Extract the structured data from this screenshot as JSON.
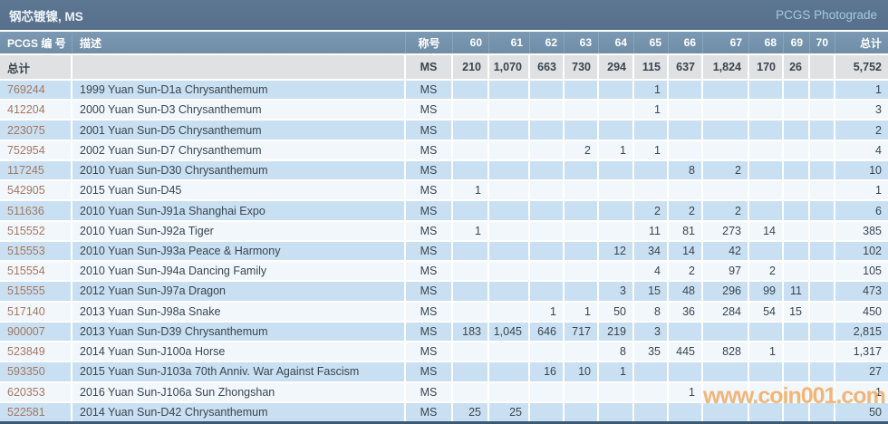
{
  "title": "钢芯镀镍, MS",
  "photograde_label": "PCGS Photograde",
  "watermark_text": "www.coin001.com",
  "colors": {
    "titlebar_bg_top": "#5d7793",
    "titlebar_bg": "#56708b",
    "header_bg": "#7493ad",
    "total_row_bg": "#dfe1e3",
    "row_alt_blue": "#c9e0f2",
    "row_alt_white": "#f2f7fc",
    "link_color": "#a5765f",
    "text_dark": "#3a454e",
    "photograde_color": "#a8c7e0",
    "watermark_color": "#f0a455",
    "bottom_border": "#3d5a74"
  },
  "table": {
    "columns": [
      "PCGS 编 号",
      "描述",
      "称号",
      "60",
      "61",
      "62",
      "63",
      "64",
      "65",
      "66",
      "67",
      "68",
      "69",
      "70",
      "总计"
    ],
    "total_row": {
      "label": "总计",
      "desc": "",
      "designation": "MS",
      "grades": [
        "210",
        "1,070",
        "663",
        "730",
        "294",
        "115",
        "637",
        "1,824",
        "170",
        "26",
        ""
      ],
      "total": "5,752"
    },
    "rows": [
      {
        "pcgs": "769244",
        "desc": "1999 Yuan Sun-D1a Chrysanthemum",
        "designation": "MS",
        "grades": [
          "",
          "",
          "",
          "",
          "",
          "1",
          "",
          "",
          "",
          "",
          ""
        ],
        "total": "1"
      },
      {
        "pcgs": "412204",
        "desc": "2000 Yuan Sun-D3 Chrysanthemum",
        "designation": "MS",
        "grades": [
          "",
          "",
          "",
          "",
          "",
          "1",
          "",
          "",
          "",
          "",
          ""
        ],
        "total": "3"
      },
      {
        "pcgs": "223075",
        "desc": "2001 Yuan Sun-D5 Chrysanthemum",
        "designation": "MS",
        "grades": [
          "",
          "",
          "",
          "",
          "",
          "",
          "",
          "",
          "",
          "",
          ""
        ],
        "total": "2"
      },
      {
        "pcgs": "752954",
        "desc": "2002 Yuan Sun-D7 Chrysanthemum",
        "designation": "MS",
        "grades": [
          "",
          "",
          "",
          "2",
          "1",
          "1",
          "",
          "",
          "",
          "",
          ""
        ],
        "total": "4"
      },
      {
        "pcgs": "117245",
        "desc": "2010 Yuan Sun-D30 Chrysanthemum",
        "designation": "MS",
        "grades": [
          "",
          "",
          "",
          "",
          "",
          "",
          "8",
          "2",
          "",
          "",
          ""
        ],
        "total": "10"
      },
      {
        "pcgs": "542905",
        "desc": "2015 Yuan Sun-D45",
        "designation": "MS",
        "grades": [
          "1",
          "",
          "",
          "",
          "",
          "",
          "",
          "",
          "",
          "",
          ""
        ],
        "total": "1"
      },
      {
        "pcgs": "511636",
        "desc": "2010 Yuan Sun-J91a Shanghai Expo",
        "designation": "MS",
        "grades": [
          "",
          "",
          "",
          "",
          "",
          "2",
          "2",
          "2",
          "",
          "",
          ""
        ],
        "total": "6"
      },
      {
        "pcgs": "515552",
        "desc": "2010 Yuan Sun-J92a Tiger",
        "designation": "MS",
        "grades": [
          "1",
          "",
          "",
          "",
          "",
          "11",
          "81",
          "273",
          "14",
          "",
          ""
        ],
        "total": "385"
      },
      {
        "pcgs": "515553",
        "desc": "2010 Yuan Sun-J93a Peace & Harmony",
        "designation": "MS",
        "grades": [
          "",
          "",
          "",
          "",
          "12",
          "34",
          "14",
          "42",
          "",
          "",
          ""
        ],
        "total": "102"
      },
      {
        "pcgs": "515554",
        "desc": "2010 Yuan Sun-J94a Dancing Family",
        "designation": "MS",
        "grades": [
          "",
          "",
          "",
          "",
          "",
          "4",
          "2",
          "97",
          "2",
          "",
          ""
        ],
        "total": "105"
      },
      {
        "pcgs": "515555",
        "desc": "2012 Yuan Sun-J97a Dragon",
        "designation": "MS",
        "grades": [
          "",
          "",
          "",
          "",
          "3",
          "15",
          "48",
          "296",
          "99",
          "11",
          ""
        ],
        "total": "473"
      },
      {
        "pcgs": "517140",
        "desc": "2013 Yuan Sun-J98a Snake",
        "designation": "MS",
        "grades": [
          "",
          "",
          "1",
          "1",
          "50",
          "8",
          "36",
          "284",
          "54",
          "15",
          ""
        ],
        "total": "450"
      },
      {
        "pcgs": "900007",
        "desc": "2013 Yuan Sun-D39 Chrysanthemum",
        "designation": "MS",
        "grades": [
          "183",
          "1,045",
          "646",
          "717",
          "219",
          "3",
          "",
          "",
          "",
          "",
          ""
        ],
        "total": "2,815"
      },
      {
        "pcgs": "523849",
        "desc": "2014 Yuan Sun-J100a Horse",
        "designation": "MS",
        "grades": [
          "",
          "",
          "",
          "",
          "8",
          "35",
          "445",
          "828",
          "1",
          "",
          ""
        ],
        "total": "1,317"
      },
      {
        "pcgs": "593350",
        "desc": "2015 Yuan Sun-J103a 70th Anniv. War Against Fascism",
        "designation": "MS",
        "grades": [
          "",
          "",
          "16",
          "10",
          "1",
          "",
          "",
          "",
          "",
          "",
          ""
        ],
        "total": "27"
      },
      {
        "pcgs": "620353",
        "desc": "2016 Yuan Sun-J106a Sun Zhongshan",
        "designation": "MS",
        "grades": [
          "",
          "",
          "",
          "",
          "",
          "",
          "1",
          "",
          "",
          "",
          ""
        ],
        "total": "1"
      },
      {
        "pcgs": "522581",
        "desc": "2014 Yuan Sun-D42 Chrysanthemum",
        "designation": "MS",
        "grades": [
          "25",
          "25",
          "",
          "",
          "",
          "",
          "",
          "",
          "",
          "",
          ""
        ],
        "total": "50"
      }
    ]
  }
}
